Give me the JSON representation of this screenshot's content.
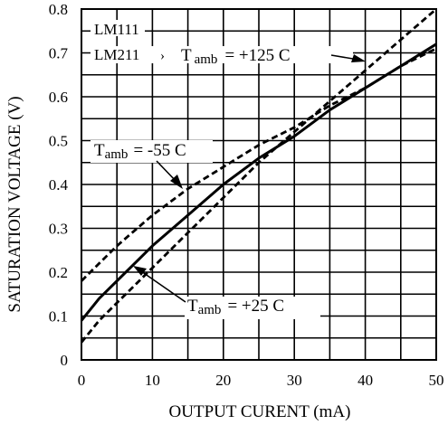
{
  "chart_data": {
    "type": "line",
    "xlabel": "OUTPUT CURENT (mA)",
    "ylabel": "SATURATION VOLTAGE (V)",
    "xlim": [
      0,
      50
    ],
    "ylim": [
      0,
      0.8
    ],
    "x_ticks": [
      "0",
      "10",
      "20",
      "30",
      "40",
      "50"
    ],
    "y_ticks": [
      "0",
      "0.1",
      "0.2",
      "0.3",
      "0.4",
      "0.5",
      "0.6",
      "0.7",
      "0.8"
    ],
    "grid": true,
    "device_labels": [
      "LM111",
      "LM211"
    ],
    "series": [
      {
        "style": "solid",
        "x": [
          0,
          2.5,
          5,
          10,
          15,
          20,
          25,
          30,
          35,
          40,
          45,
          50
        ],
        "y": [
          0.09,
          0.14,
          0.18,
          0.26,
          0.33,
          0.4,
          0.46,
          0.51,
          0.57,
          0.62,
          0.67,
          0.72
        ]
      },
      {
        "style": "dashed",
        "x": [
          0,
          2.5,
          5,
          10,
          15,
          20,
          25,
          30,
          35,
          40,
          45,
          50
        ],
        "y": [
          0.04,
          0.09,
          0.13,
          0.21,
          0.29,
          0.37,
          0.45,
          0.52,
          0.59,
          0.66,
          0.73,
          0.8
        ]
      },
      {
        "style": "dashed",
        "x": [
          0,
          2.5,
          5,
          10,
          15,
          20,
          25,
          30,
          35,
          40,
          45,
          50
        ],
        "y": [
          0.18,
          0.22,
          0.26,
          0.33,
          0.39,
          0.44,
          0.49,
          0.53,
          0.58,
          0.62,
          0.67,
          0.71
        ]
      }
    ],
    "annotations": [
      {
        "prefix": "T",
        "sub": "amb",
        "value": "= +125  C"
      },
      {
        "prefix": "T",
        "sub": "amb",
        "value": "= -55  C"
      },
      {
        "prefix": "T",
        "sub": "amb",
        "value": "= +25  C"
      }
    ]
  }
}
